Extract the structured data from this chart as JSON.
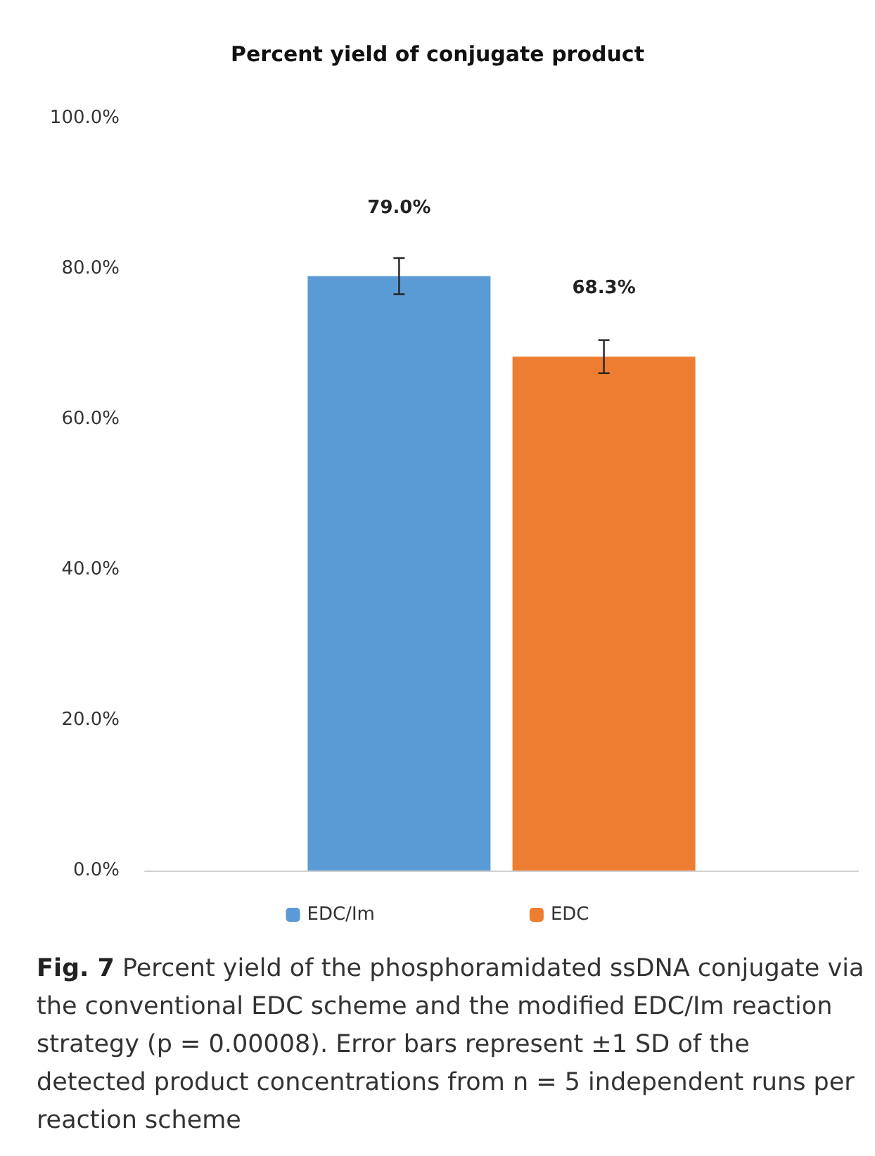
{
  "chart_data": {
    "type": "bar",
    "title": "Percent yield of conjugate product",
    "categories": [
      null
    ],
    "series": [
      {
        "name": "EDC/Im",
        "color": "#5b9bd5",
        "values": [
          79.0
        ],
        "errors": [
          2.4
        ],
        "value_labels": [
          "79.0%"
        ]
      },
      {
        "name": "EDC",
        "color": "#ed7d31",
        "values": [
          68.3
        ],
        "errors": [
          2.2
        ],
        "value_labels": [
          "68.3%"
        ]
      }
    ],
    "ylim": [
      0,
      100
    ],
    "yticks": [
      {
        "value": 0,
        "label": "0.0%"
      },
      {
        "value": 20,
        "label": "20.0%"
      },
      {
        "value": 40,
        "label": "40.0%"
      },
      {
        "value": 60,
        "label": "60.0%"
      },
      {
        "value": 80,
        "label": "80.0%"
      },
      {
        "value": 100,
        "label": "100.0%"
      }
    ],
    "grid": false,
    "legend": "bottom",
    "annotations": [
      "Fig. 7",
      "Percent yield of the phosphoramidated ssDNA conjugate via the conventional EDC scheme and the modified EDC/Im reaction strategy (p = 0.00008). Error bars represent ±1 SD of the detected product concentrations from n = 5 independent runs per reaction scheme"
    ]
  }
}
